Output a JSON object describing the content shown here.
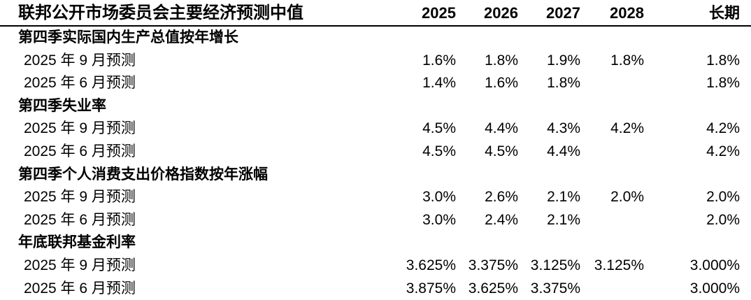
{
  "chart_data": {
    "type": "table",
    "title": "联邦公开市场委员会主要经济预测中值",
    "columns": [
      "2025",
      "2026",
      "2027",
      "2028",
      "长期"
    ],
    "sections": [
      {
        "label": "第四季实际国内生产总值按年增长",
        "rows": [
          {
            "label": "2025 年 9 月预测",
            "values": [
              "1.6%",
              "1.8%",
              "1.9%",
              "1.8%",
              "1.8%"
            ]
          },
          {
            "label": "2025 年 6 月预测",
            "values": [
              "1.4%",
              "1.6%",
              "1.8%",
              "",
              "1.8%"
            ]
          }
        ]
      },
      {
        "label": "第四季失业率",
        "rows": [
          {
            "label": "2025 年 9 月预测",
            "values": [
              "4.5%",
              "4.4%",
              "4.3%",
              "4.2%",
              "4.2%"
            ]
          },
          {
            "label": "2025 年 6 月预测",
            "values": [
              "4.5%",
              "4.5%",
              "4.4%",
              "",
              "4.2%"
            ]
          }
        ]
      },
      {
        "label": "第四季个人消费支出价格指数按年涨幅",
        "rows": [
          {
            "label": "2025 年 9 月预测",
            "values": [
              "3.0%",
              "2.6%",
              "2.1%",
              "2.0%",
              "2.0%"
            ]
          },
          {
            "label": "2025 年 6 月预测",
            "values": [
              "3.0%",
              "2.4%",
              "2.1%",
              "",
              "2.0%"
            ]
          }
        ]
      },
      {
        "label": "年底联邦基金利率",
        "rows": [
          {
            "label": "2025 年 9 月预测",
            "values": [
              "3.625%",
              "3.375%",
              "3.125%",
              "3.125%",
              "3.000%"
            ]
          },
          {
            "label": "2025 年 6 月预测",
            "values": [
              "3.875%",
              "3.625%",
              "3.375%",
              "",
              "3.000%"
            ]
          }
        ]
      }
    ]
  }
}
